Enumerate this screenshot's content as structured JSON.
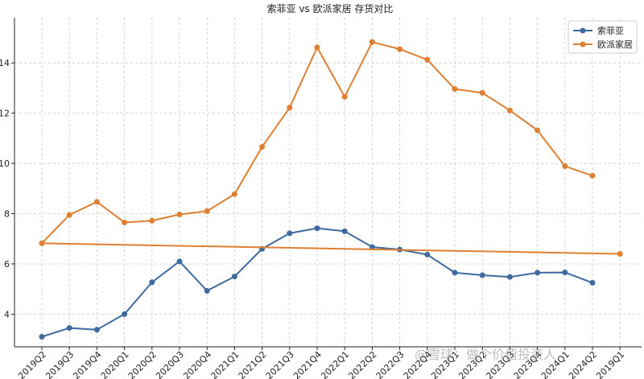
{
  "chart_data": {
    "type": "line",
    "title": "索菲亚 vs 欧派家居 存货对比",
    "xlabel": "",
    "ylabel": "",
    "categories": [
      "2019Q2",
      "2019Q3",
      "2019Q4",
      "2020Q1",
      "2020Q2",
      "2020Q3",
      "2020Q4",
      "2021Q1",
      "2021Q2",
      "2021Q3",
      "2021Q4",
      "2022Q1",
      "2022Q2",
      "2022Q3",
      "2022Q4",
      "2023Q1",
      "2023Q2",
      "2023Q3",
      "2023Q4",
      "2024Q1",
      "2024Q2",
      "2019Q1"
    ],
    "ylim": [
      2.7,
      15.8
    ],
    "yticks": [
      4,
      6,
      8,
      10,
      12,
      14
    ],
    "grid": true,
    "legend_position": "top-right",
    "series": [
      {
        "name": "索菲亚",
        "color": "#3e6aa0",
        "values": [
          3.1,
          3.45,
          3.38,
          4.0,
          5.27,
          6.1,
          4.93,
          5.5,
          6.6,
          7.22,
          7.42,
          7.3,
          6.67,
          6.57,
          6.37,
          5.65,
          5.55,
          5.48,
          5.65,
          5.66,
          5.25,
          null
        ]
      },
      {
        "name": "欧派家居",
        "color": "#df7f32",
        "values": [
          6.82,
          7.95,
          8.47,
          7.65,
          7.72,
          7.97,
          8.1,
          8.78,
          10.66,
          12.22,
          14.62,
          12.65,
          14.83,
          14.55,
          14.13,
          12.96,
          12.81,
          12.11,
          11.32,
          9.89,
          9.51,
          null
        ],
        "trend": {
          "from_index": 0,
          "from_value": 6.82,
          "to_index": 21,
          "to_value": 6.4
        }
      }
    ]
  },
  "watermark": "@雪球：做个价值投资人"
}
